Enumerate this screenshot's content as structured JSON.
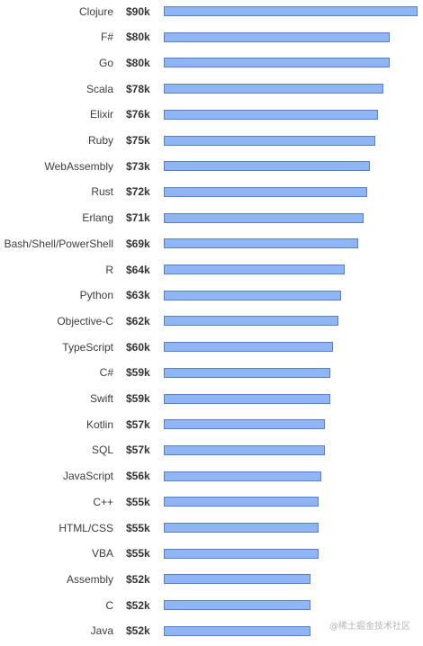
{
  "chart_data": {
    "type": "bar",
    "orientation": "horizontal",
    "categories": [
      "Clojure",
      "F#",
      "Go",
      "Scala",
      "Elixir",
      "Ruby",
      "WebAssembly",
      "Rust",
      "Erlang",
      "Bash/Shell/PowerShell",
      "R",
      "Python",
      "Objective-C",
      "TypeScript",
      "C#",
      "Swift",
      "Kotlin",
      "SQL",
      "JavaScript",
      "C++",
      "HTML/CSS",
      "VBA",
      "Assembly",
      "C",
      "Java"
    ],
    "values": [
      90,
      80,
      80,
      78,
      76,
      75,
      73,
      72,
      71,
      69,
      64,
      63,
      62,
      60,
      59,
      59,
      57,
      57,
      56,
      55,
      55,
      55,
      52,
      52,
      52
    ],
    "value_labels": [
      "$90k",
      "$80k",
      "$80k",
      "$78k",
      "$76k",
      "$75k",
      "$73k",
      "$72k",
      "$71k",
      "$69k",
      "$64k",
      "$63k",
      "$62k",
      "$60k",
      "$59k",
      "$59k",
      "$57k",
      "$57k",
      "$56k",
      "$55k",
      "$55k",
      "$55k",
      "$52k",
      "$52k",
      "$52k"
    ],
    "xlim": [
      0,
      90
    ],
    "grid": false,
    "colors": {
      "bar_fill": "#8fb5f5",
      "bar_border": "#5b7fc4"
    }
  },
  "watermark": "@稀土掘金技术社区"
}
